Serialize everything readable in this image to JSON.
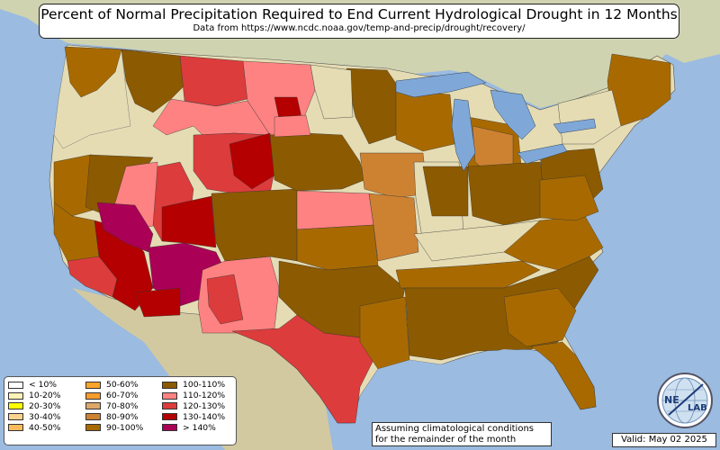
{
  "title": "Percent of Normal Precipitation Required to End Current Hydrological Drought in 12 Months",
  "subtitle": "Data from https://www.ncdc.noaa.gov/temp-and-precip/drought/recovery/",
  "legend": [
    {
      "label": "< 10%",
      "color": "#ffffff"
    },
    {
      "label": "10-20%",
      "color": "#fff3b8"
    },
    {
      "label": "20-30%",
      "color": "#ffff00"
    },
    {
      "label": "30-40%",
      "color": "#fdd48e"
    },
    {
      "label": "40-50%",
      "color": "#fdbb5c"
    },
    {
      "label": "50-60%",
      "color": "#fda42a"
    },
    {
      "label": "60-70%",
      "color": "#f89c2c"
    },
    {
      "label": "70-80%",
      "color": "#dca86a"
    },
    {
      "label": "80-90%",
      "color": "#cd8232"
    },
    {
      "label": "90-100%",
      "color": "#a86a00"
    },
    {
      "label": "100-110%",
      "color": "#8c5a00"
    },
    {
      "label": "110-120%",
      "color": "#ff8282"
    },
    {
      "label": "120-130%",
      "color": "#dc3c3c"
    },
    {
      "label": "130-140%",
      "color": "#b40000"
    },
    {
      "label": "> 140%",
      "color": "#aa0055"
    }
  ],
  "note": {
    "line1": "Assuming climatological conditions",
    "line2": "for the remainder of the month"
  },
  "valid": "Valid: May 02 2025",
  "logo": {
    "text_left": "NE",
    "text_right": "LAB",
    "icon": "nexlab-globe-logo"
  },
  "colors": {
    "ocean": "#9bbbe0",
    "land": "#d9d3b0",
    "lakes": "#7fa8d8"
  }
}
